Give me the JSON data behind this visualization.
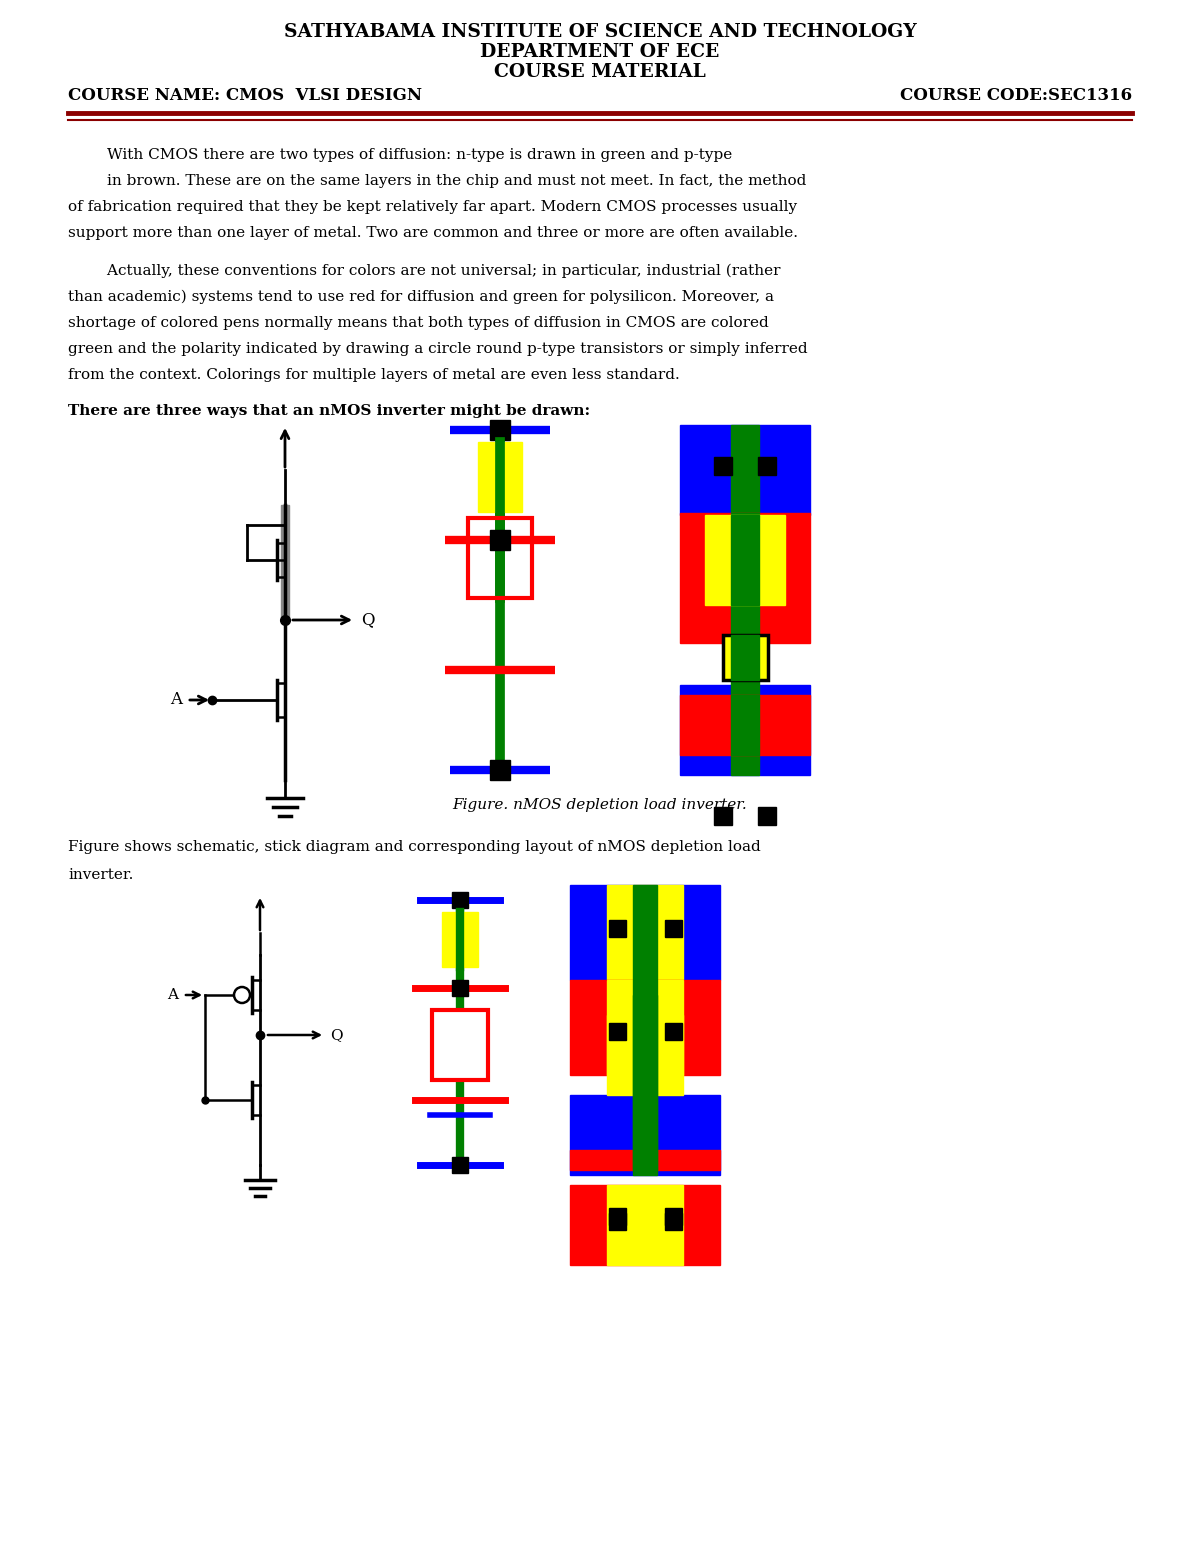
{
  "title_line1": "SATHYABAMA INSTITUTE OF SCIENCE AND TECHNOLOGY",
  "title_line2": "DEPARTMENT OF ECE",
  "title_line3": "COURSE MATERIAL",
  "course_name": "COURSE NAME: CMOS  VLSI DESIGN",
  "course_code": "COURSE CODE:SEC1316",
  "separator_color": "#8B0000",
  "bg_color": "#ffffff",
  "para1_lines": [
    "        With CMOS there are two types of diffusion: n-type is drawn in green and p-type",
    "        in brown. These are on the same layers in the chip and must not meet. In fact, the method",
    "of fabrication required that they be kept relatively far apart. Modern CMOS processes usually",
    "support more than one layer of metal. Two are common and three or more are often available."
  ],
  "para2_lines": [
    "        Actually, these conventions for colors are not universal; in particular, industrial (rather",
    "than academic) systems tend to use red for diffusion and green for polysilicon. Moreover, a",
    "shortage of colored pens normally means that both types of diffusion in CMOS are colored",
    "green and the polarity indicated by drawing a circle round p-type transistors or simply inferred",
    "from the context. Colorings for multiple layers of metal are even less standard."
  ],
  "para3": "There are three ways that an nMOS inverter might be drawn:",
  "figure_caption": "Figure. nMOS depletion load inverter.",
  "para4_line1": "Figure shows schematic, stick diagram and corresponding layout of nMOS depletion load",
  "para4_line2": "inverter."
}
